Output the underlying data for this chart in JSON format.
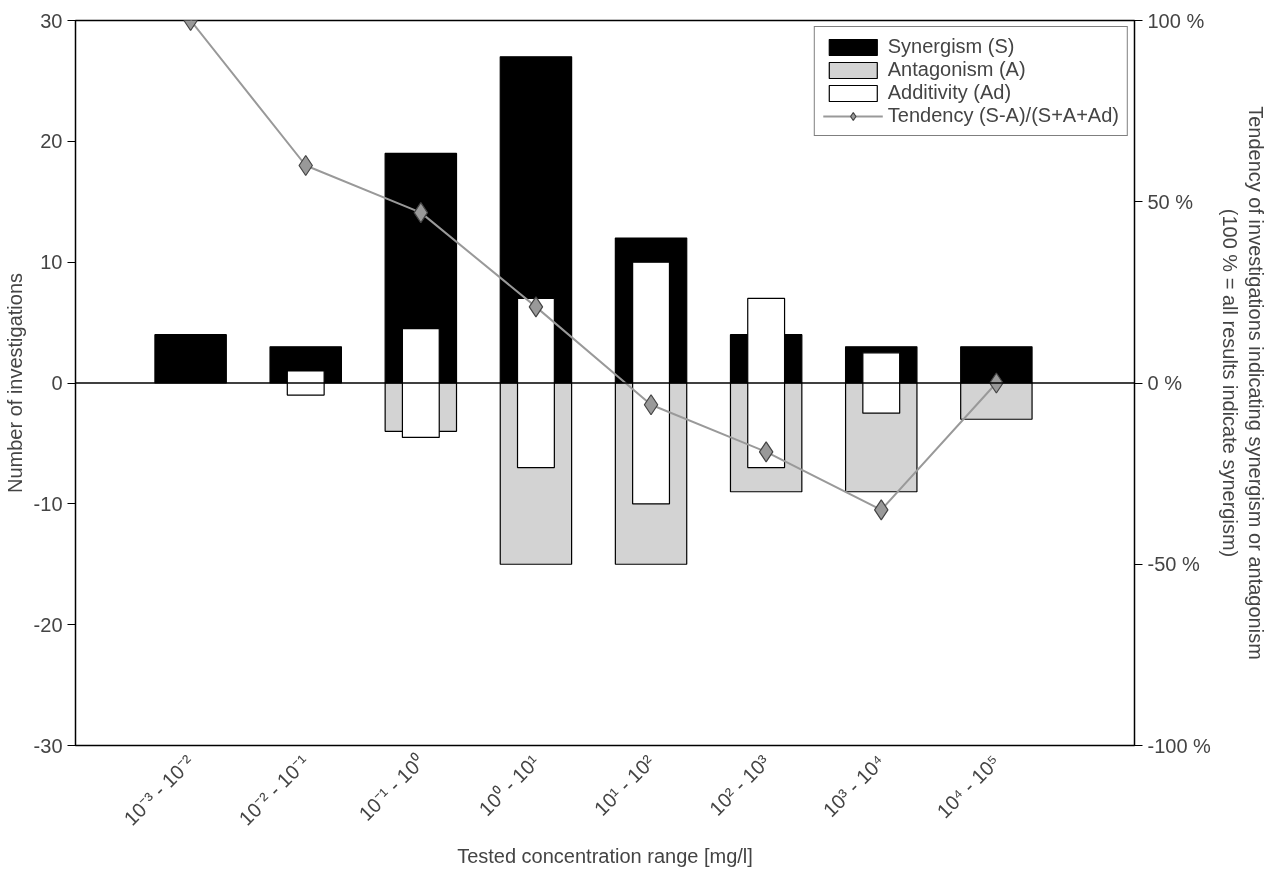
{
  "chart_data": {
    "type": "bar",
    "xlabel": "Tested concentration range [mg/l]",
    "ylabel": "Number of investigations",
    "y2label": "Tendency of investigations indicating synergism or antagonism\n(100 % = all results indicate synergism)",
    "categories": [
      "10⁻³ - 10⁻²",
      "10⁻² - 10⁻¹",
      "10⁻¹ - 10⁰",
      "10⁰ - 10¹",
      "10¹ - 10²",
      "10² - 10³",
      "10³ - 10⁴",
      "10⁴ - 10⁵"
    ],
    "series": [
      {
        "name": "Synergism (S)",
        "color": "#000000",
        "values": [
          4,
          3,
          19,
          27,
          12,
          4,
          3,
          3
        ],
        "base": [
          0,
          0,
          0,
          0,
          0,
          0,
          0,
          0
        ]
      },
      {
        "name": "Antagonism (A)",
        "color": "#d3d3d3",
        "values": [
          null,
          null,
          -4,
          -15,
          -15,
          -9,
          -9,
          -3
        ],
        "base": [
          null,
          null,
          0,
          0,
          0,
          0,
          0,
          0
        ]
      },
      {
        "name": "Additivity (Ad)",
        "color": "#ffffff",
        "values": [
          null,
          2,
          9,
          14,
          20,
          14,
          5,
          null
        ],
        "base": [
          null,
          -1,
          -4.5,
          -7,
          -10,
          -7,
          -2.5,
          null
        ]
      },
      {
        "name": "Tendency (S-A)/(S+A+Ad)",
        "type": "line",
        "axis": "y2",
        "color": "#999999",
        "values": [
          100,
          60,
          47,
          21,
          -6,
          -19,
          -35,
          0
        ]
      }
    ],
    "ylim": [
      -30,
      30
    ],
    "yticks": [
      -30,
      -20,
      -10,
      0,
      10,
      20,
      30
    ],
    "y2lim": [
      -100,
      100
    ],
    "y2ticks": [
      {
        "value": -100,
        "label": "-100 %"
      },
      {
        "value": -50,
        "label": "-50 %"
      },
      {
        "value": 0,
        "label": "0 %"
      },
      {
        "value": 50,
        "label": "50 %"
      },
      {
        "value": 100,
        "label": "100 %"
      }
    ],
    "ref_lines": [
      {
        "axis": "y",
        "value": 0,
        "color": "#000000"
      }
    ],
    "marker": "diamond",
    "legend": "top right",
    "grid": false
  }
}
